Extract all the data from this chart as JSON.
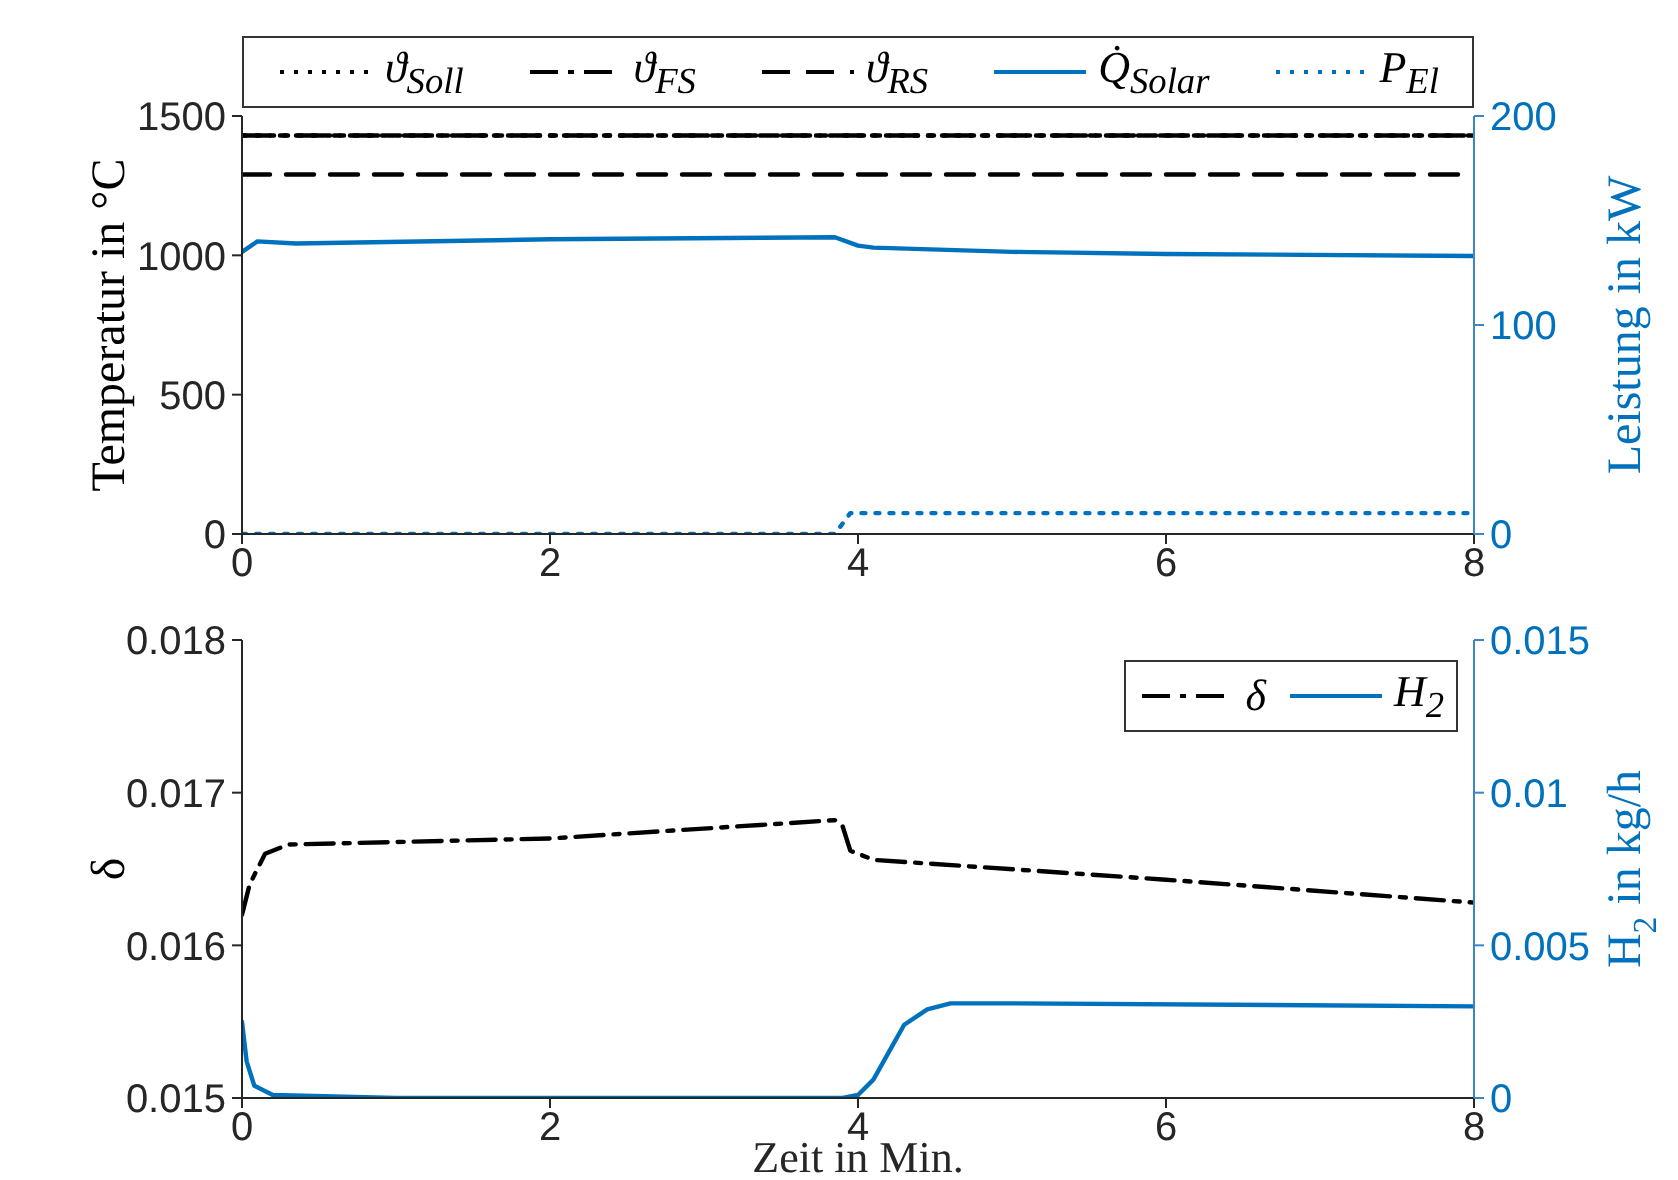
{
  "chart_data": [
    {
      "type": "line",
      "ylabel": "Temperatur in °C",
      "y2label": "Leistung in kW",
      "xlim": [
        0,
        8
      ],
      "xticks": [
        0,
        2,
        4,
        6,
        8
      ],
      "ylim": [
        0,
        1500
      ],
      "yticks": [
        0,
        500,
        1000,
        1500
      ],
      "y2lim": [
        0,
        200
      ],
      "y2ticks": [
        0,
        100,
        200
      ],
      "legend": "top",
      "grid": false,
      "marker": "none",
      "series": [
        {
          "name": "ϑ$_{Soll}$",
          "color": "#000000",
          "line_style": "dotted",
          "x": [
            0,
            8
          ],
          "values": [
            1430,
            1430
          ]
        },
        {
          "name": "ϑ$_{FS}$",
          "color": "#000000",
          "line_style": "dashdot",
          "x": [
            0,
            8
          ],
          "values": [
            1430,
            1430
          ]
        },
        {
          "name": "ϑ$_{RS}$",
          "color": "#000000",
          "line_style": "dashed",
          "x": [
            0,
            8
          ],
          "values": [
            1290,
            1290
          ]
        },
        {
          "name": "Q̇$_{Solar}$",
          "color": "#0072bd",
          "line_style": "solid",
          "axis": "y2",
          "x": [
            0,
            0.1,
            0.35,
            2,
            3.85,
            4.0,
            4.1,
            5,
            6,
            8
          ],
          "values": [
            135,
            140,
            139,
            141,
            142,
            138,
            137,
            135,
            134,
            133
          ]
        },
        {
          "name": "P$_{El}$",
          "color": "#0072bd",
          "line_style": "dotted",
          "axis": "y2",
          "x": [
            0,
            3.85,
            3.95,
            8
          ],
          "values": [
            0,
            0,
            10,
            10
          ]
        }
      ]
    },
    {
      "type": "line",
      "xlabel": "Zeit in Min.",
      "ylabel": "δ",
      "y2label": "H$_{2}$ in kg/h",
      "xlim": [
        0,
        8
      ],
      "xticks": [
        0,
        2,
        4,
        6,
        8
      ],
      "ylim": [
        0.015,
        0.018
      ],
      "yticks": [
        0.015,
        0.016,
        0.017,
        0.018
      ],
      "y2lim": [
        0,
        0.015
      ],
      "y2ticks": [
        0,
        0.005,
        0.01,
        0.015
      ],
      "legend": "top right",
      "grid": false,
      "marker": "none",
      "series": [
        {
          "name": "δ",
          "color": "#000000",
          "line_style": "dashdot",
          "x": [
            0,
            0.05,
            0.15,
            0.3,
            2,
            3.85,
            3.9,
            3.95,
            4.1,
            6,
            8
          ],
          "values": [
            0.0162,
            0.0164,
            0.0166,
            0.01666,
            0.0167,
            0.01682,
            0.01678,
            0.01662,
            0.01656,
            0.01643,
            0.01628
          ]
        },
        {
          "name": "H$_{2}$",
          "color": "#0072bd",
          "line_style": "solid",
          "axis": "y2",
          "x": [
            0,
            0.03,
            0.08,
            0.2,
            1,
            3.9,
            4.0,
            4.1,
            4.2,
            4.3,
            4.45,
            4.6,
            5,
            8
          ],
          "values": [
            0.0025,
            0.0012,
            0.0004,
            0.0001,
            0,
            0,
            0.0001,
            0.0006,
            0.0015,
            0.0024,
            0.0029,
            0.0031,
            0.0031,
            0.003
          ]
        }
      ]
    }
  ]
}
